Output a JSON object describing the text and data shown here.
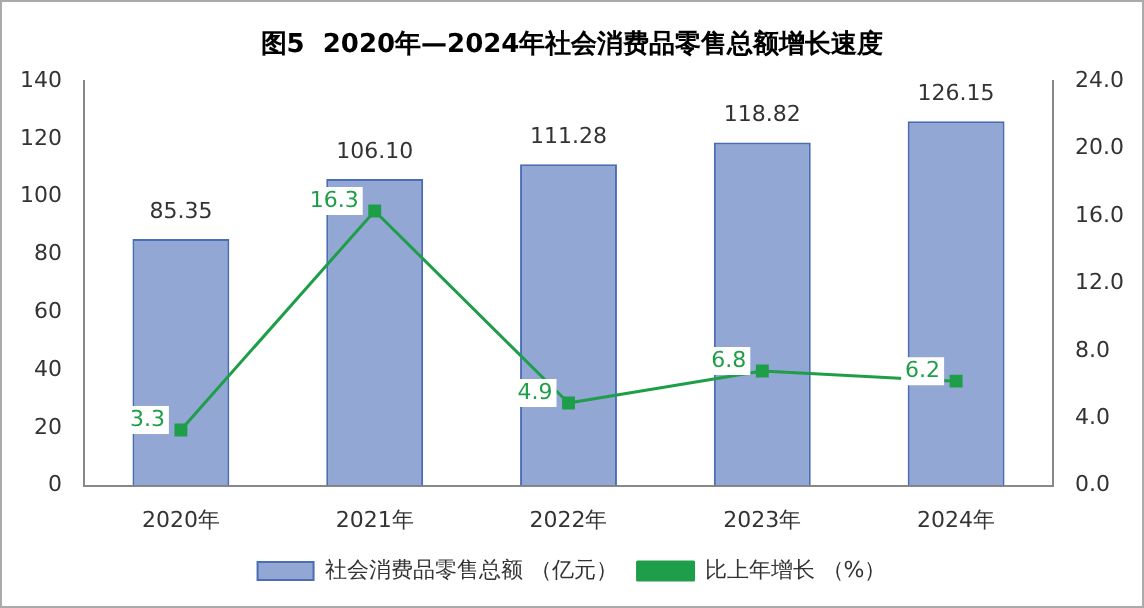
{
  "chart_data": {
    "type": "bar",
    "title": "图5  2020年—2024年社会消费品零售总额增长速度",
    "categories": [
      "2020年",
      "2021年",
      "2022年",
      "2023年",
      "2024年"
    ],
    "series": [
      {
        "name": "社会消费品零售总额 （亿元）",
        "color": "#4a6db5",
        "values": [
          85.35,
          106.1,
          111.28,
          118.82,
          126.15
        ],
        "value_labels": [
          "85.35",
          "106.10",
          "111.28",
          "118.82",
          "126.15"
        ]
      },
      {
        "name": "比上年增长 （%）",
        "type": "line",
        "axis": "y2",
        "color": "#1f9e4a",
        "marker": "square",
        "values": [
          3.3,
          16.3,
          4.9,
          6.8,
          6.2
        ],
        "value_labels": [
          "3.3",
          "16.3",
          "4.9",
          "6.8",
          "6.2"
        ]
      }
    ],
    "ylim": [
      0,
      140
    ],
    "yticks": [
      0,
      20,
      40,
      60,
      80,
      100,
      120,
      140
    ],
    "y2lim": [
      0,
      24
    ],
    "y2ticks": [
      {
        "value": 0,
        "label": "0.0"
      },
      {
        "value": 4,
        "label": "4.0"
      },
      {
        "value": 8,
        "label": "8.0"
      },
      {
        "value": 12,
        "label": "12.0"
      },
      {
        "value": 16,
        "label": "16.0"
      },
      {
        "value": 20,
        "label": "20.0"
      },
      {
        "value": 24,
        "label": "24.0"
      }
    ],
    "grid": false,
    "legend": "bottom"
  }
}
